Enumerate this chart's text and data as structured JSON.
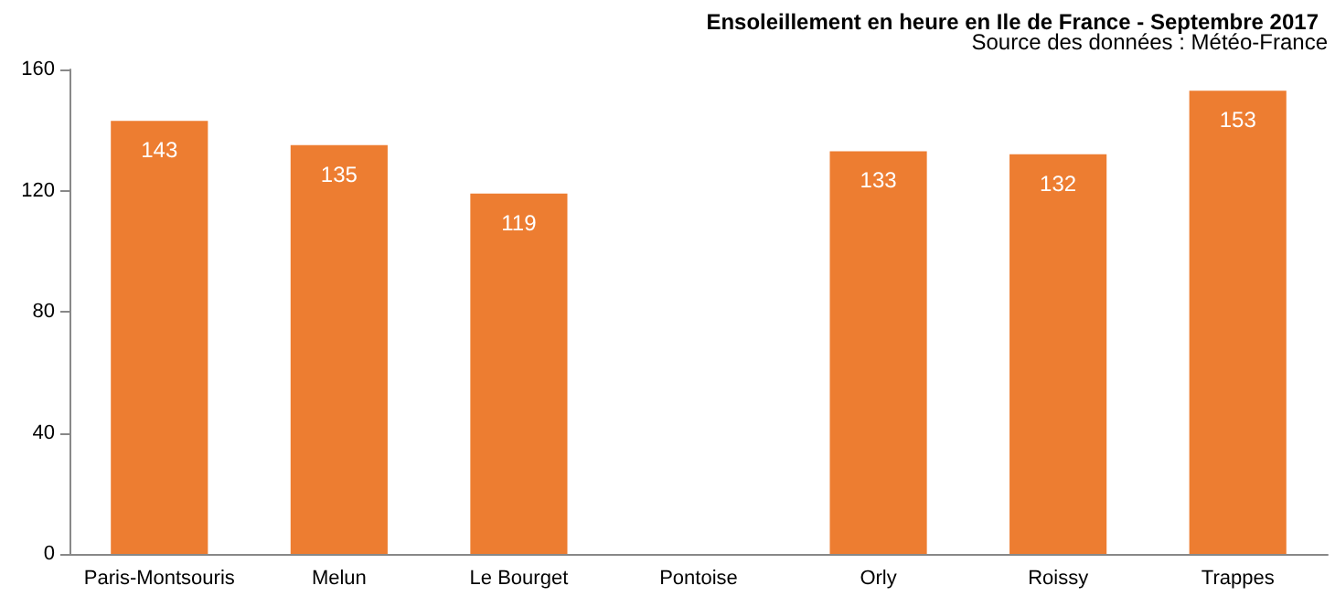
{
  "chart_data": {
    "type": "bar",
    "title": "Ensoleillement en heure en Ile de France - Septembre 2017",
    "annotations": [
      "Source des données : Météo-France"
    ],
    "categories": [
      "Paris-Montsouris",
      "Melun",
      "Le Bourget",
      "Pontoise",
      "Orly",
      "Roissy",
      "Trappes"
    ],
    "values": [
      143,
      135,
      119,
      null,
      133,
      132,
      153
    ],
    "color": "#ed7d31",
    "ylim": [
      0,
      160
    ],
    "yticks": [
      0,
      40,
      80,
      120,
      160
    ],
    "grid": false,
    "data_labels": true
  }
}
